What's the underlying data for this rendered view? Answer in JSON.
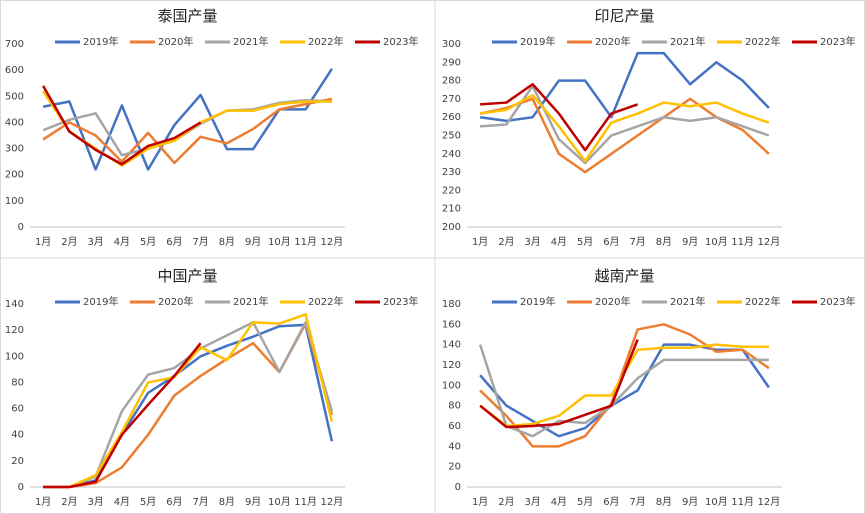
{
  "chart_data": [
    {
      "type": "line",
      "title": "泰国产量",
      "categories": [
        "1月",
        "2月",
        "3月",
        "4月",
        "5月",
        "6月",
        "7月",
        "8月",
        "9月",
        "10月",
        "11月",
        "12月"
      ],
      "ylim": [
        0,
        700
      ],
      "yticks": [
        0,
        100,
        200,
        300,
        400,
        500,
        600,
        700
      ],
      "series": [
        {
          "name": "2019年",
          "color": "#4472c4",
          "values": [
            460,
            480,
            220,
            465,
            220,
            390,
            505,
            298,
            298,
            450,
            450,
            605
          ]
        },
        {
          "name": "2020年",
          "color": "#ed7d31",
          "values": [
            335,
            400,
            350,
            250,
            360,
            245,
            345,
            320,
            375,
            450,
            470,
            490
          ]
        },
        {
          "name": "2021年",
          "color": "#a5a5a5",
          "values": [
            370,
            410,
            435,
            275,
            300,
            330,
            395,
            445,
            450,
            475,
            485,
            480
          ]
        },
        {
          "name": "2022年",
          "color": "#ffc000",
          "values": [
            520,
            365,
            300,
            235,
            300,
            330,
            400,
            445,
            445,
            470,
            480,
            480
          ]
        },
        {
          "name": "2023年",
          "color": "#c00000",
          "values": [
            540,
            365,
            295,
            240,
            310,
            340,
            400,
            null,
            null,
            null,
            null,
            null
          ]
        }
      ]
    },
    {
      "type": "line",
      "title": "印尼产量",
      "categories": [
        "1月",
        "2月",
        "3月",
        "4月",
        "5月",
        "6月",
        "7月",
        "8月",
        "9月",
        "10月",
        "11月",
        "12月"
      ],
      "ylim": [
        200,
        300
      ],
      "yticks": [
        200,
        210,
        220,
        230,
        240,
        250,
        260,
        270,
        280,
        290,
        300
      ],
      "series": [
        {
          "name": "2019年",
          "color": "#4472c4",
          "values": [
            260,
            258,
            260,
            280,
            280,
            260,
            295,
            295,
            278,
            290,
            280,
            265
          ]
        },
        {
          "name": "2020年",
          "color": "#ed7d31",
          "values": [
            262,
            265,
            270,
            240,
            230,
            240,
            250,
            260,
            270,
            260,
            253,
            240
          ]
        },
        {
          "name": "2021年",
          "color": "#a5a5a5",
          "values": [
            255,
            256,
            277,
            248,
            235,
            250,
            255,
            260,
            258,
            260,
            255,
            250
          ]
        },
        {
          "name": "2022年",
          "color": "#ffc000",
          "values": [
            262,
            264,
            272,
            255,
            236,
            257,
            262,
            268,
            266,
            268,
            262,
            257
          ]
        },
        {
          "name": "2023年",
          "color": "#c00000",
          "values": [
            267,
            268,
            278,
            262,
            242,
            262,
            267,
            null,
            null,
            null,
            null,
            null
          ]
        }
      ]
    },
    {
      "type": "line",
      "title": "中国产量",
      "categories": [
        "1月",
        "2月",
        "3月",
        "4月",
        "5月",
        "6月",
        "7月",
        "8月",
        "9月",
        "10月",
        "11月",
        "12月"
      ],
      "ylim": [
        0,
        140
      ],
      "yticks": [
        0,
        20,
        40,
        60,
        80,
        100,
        120,
        140
      ],
      "series": [
        {
          "name": "2019年",
          "color": "#4472c4",
          "values": [
            0,
            0,
            5,
            40,
            72,
            85,
            100,
            108,
            115,
            123,
            124,
            35
          ]
        },
        {
          "name": "2020年",
          "color": "#ed7d31",
          "values": [
            0,
            0,
            3,
            15,
            40,
            70,
            85,
            98,
            110,
            88,
            125,
            55
          ]
        },
        {
          "name": "2021年",
          "color": "#a5a5a5",
          "values": [
            0,
            0,
            8,
            58,
            86,
            91,
            106,
            116,
            126,
            88,
            126,
            58
          ]
        },
        {
          "name": "2022年",
          "color": "#ffc000",
          "values": [
            0,
            0,
            9,
            42,
            80,
            84,
            107,
            97,
            126,
            125,
            132,
            50
          ]
        },
        {
          "name": "2023年",
          "color": "#c00000",
          "values": [
            0,
            0,
            4,
            40,
            63,
            85,
            110,
            null,
            null,
            null,
            null,
            null
          ]
        }
      ]
    },
    {
      "type": "line",
      "title": "越南产量",
      "categories": [
        "1月",
        "2月",
        "3月",
        "4月",
        "5月",
        "6月",
        "7月",
        "8月",
        "9月",
        "10月",
        "11月",
        "12月"
      ],
      "ylim": [
        0,
        180
      ],
      "yticks": [
        0,
        20,
        40,
        60,
        80,
        100,
        120,
        140,
        160,
        180
      ],
      "series": [
        {
          "name": "2019年",
          "color": "#4472c4",
          "values": [
            110,
            80,
            65,
            50,
            58,
            80,
            95,
            140,
            140,
            135,
            135,
            98
          ]
        },
        {
          "name": "2020年",
          "color": "#ed7d31",
          "values": [
            95,
            70,
            40,
            40,
            50,
            82,
            155,
            160,
            150,
            133,
            135,
            117
          ]
        },
        {
          "name": "2021年",
          "color": "#a5a5a5",
          "values": [
            140,
            60,
            50,
            65,
            63,
            80,
            107,
            125,
            125,
            125,
            125,
            125
          ]
        },
        {
          "name": "2022年",
          "color": "#ffc000",
          "values": [
            80,
            60,
            62,
            70,
            90,
            90,
            135,
            137,
            137,
            140,
            138,
            138
          ]
        },
        {
          "name": "2023年",
          "color": "#c00000",
          "values": [
            80,
            59,
            60,
            62,
            71,
            80,
            145,
            null,
            null,
            null,
            null,
            null
          ]
        }
      ]
    }
  ]
}
